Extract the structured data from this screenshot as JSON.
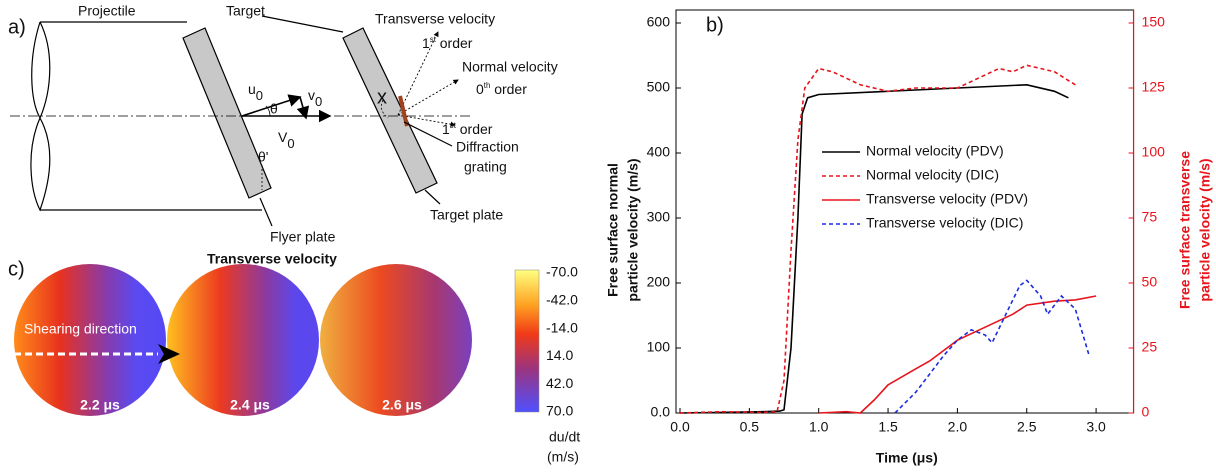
{
  "diagram_a": {
    "label": "a)",
    "projectile": "Projectile",
    "target": "Target",
    "transverse_velocity": "Transverse velocity",
    "first_order_top": [
      "1",
      "st",
      " order"
    ],
    "normal_velocity": "Normal velocity",
    "zeroth_order": [
      "0",
      "th",
      " order"
    ],
    "first_order_bottom": [
      "1",
      "st",
      " order"
    ],
    "u0": [
      "u",
      "0"
    ],
    "v0": [
      "v",
      "0"
    ],
    "V0": [
      "V",
      "0"
    ],
    "theta": "θ",
    "theta_prime": "θ'",
    "x": "x",
    "diffraction_grating": [
      "Diffraction",
      "grating"
    ],
    "target_plate": "Target plate",
    "flyer_plate": "Flyer plate"
  },
  "panel_c": {
    "label": "c)",
    "title": "Transverse velocity",
    "annotation": "Shearing direction",
    "snapshots": [
      "2.2 μs",
      "2.4 μs",
      "2.6 μs"
    ],
    "colorbar": {
      "ticks": [
        "-70.0",
        "-42.0",
        "-14.0",
        "14.0",
        "42.0",
        "70.0"
      ],
      "label": [
        "du/dt",
        "(m/s)"
      ]
    }
  },
  "chart_data": {
    "type": "line",
    "label": "b)",
    "xlabel": "Time (μs)",
    "ylabel": [
      "Free surface normal",
      "particle velocity (m/s)"
    ],
    "y2label": [
      "Free surface transverse",
      "particle velocity (m/s)"
    ],
    "xlim": [
      0,
      3.27
    ],
    "xticks": [
      {
        "value": 0,
        "label": "0.0"
      },
      0.5,
      {
        "value": 1,
        "label": "1.0"
      },
      1.5,
      {
        "value": 2,
        "label": "2.0"
      },
      2.5,
      {
        "value": 3,
        "label": "3.0"
      }
    ],
    "ylim": [
      0,
      620
    ],
    "yticks": [
      {
        "value": 0,
        "label": "0.0"
      },
      100,
      200,
      300,
      400,
      500,
      600
    ],
    "y2lim": [
      0,
      155
    ],
    "y2ticks": [
      0,
      25,
      50,
      75,
      100,
      125,
      150
    ],
    "y2color": "#e8141c",
    "series": [
      {
        "name": "Normal velocity (PDV)",
        "color": "#000000",
        "linestyle": "solid",
        "x": [
          0,
          0.3,
          0.6,
          0.72,
          0.75,
          0.8,
          0.85,
          0.88,
          0.92,
          1.0,
          1.5,
          2.0,
          2.5,
          2.7,
          2.8
        ],
        "values": [
          0,
          1,
          2,
          3,
          5,
          100,
          300,
          460,
          485,
          490,
          495,
          500,
          505,
          495,
          485
        ]
      },
      {
        "name": "Normal velocity (DIC)",
        "color": "#e8141c",
        "linestyle": "dashed",
        "x": [
          0,
          0.3,
          0.6,
          0.7,
          0.75,
          0.8,
          0.85,
          0.9,
          1.0,
          1.1,
          1.3,
          1.5,
          1.7,
          2.0,
          2.2,
          2.3,
          2.4,
          2.5,
          2.6,
          2.7,
          2.85
        ],
        "values": [
          0,
          2,
          1,
          2,
          50,
          250,
          420,
          500,
          530,
          525,
          505,
          495,
          500,
          500,
          520,
          530,
          525,
          535,
          530,
          525,
          505
        ]
      },
      {
        "name": "Transverse velocity (PDV)",
        "color": "#e8141c",
        "linestyle": "solid",
        "axis": "y2",
        "x": [
          1.0,
          1.2,
          1.3,
          1.4,
          1.5,
          1.7,
          1.8,
          2.0,
          2.2,
          2.4,
          2.5,
          2.7,
          2.85,
          3.0
        ],
        "values": [
          0,
          0.5,
          0,
          5,
          10.8,
          17,
          20,
          28,
          33,
          38,
          41.5,
          43,
          43.5,
          45
        ]
      },
      {
        "name": "Transverse velocity (DIC)",
        "color": "#1c2ce0",
        "linestyle": "dashed",
        "axis": "y2",
        "x": [
          1.55,
          1.7,
          1.8,
          1.9,
          2.0,
          2.1,
          2.2,
          2.25,
          2.35,
          2.45,
          2.5,
          2.6,
          2.65,
          2.75,
          2.85,
          2.95
        ],
        "values": [
          0,
          8,
          15,
          22,
          28,
          32,
          30,
          27,
          38,
          49,
          51,
          45,
          38,
          45,
          40,
          22
        ]
      }
    ],
    "legend": "upper-left"
  }
}
